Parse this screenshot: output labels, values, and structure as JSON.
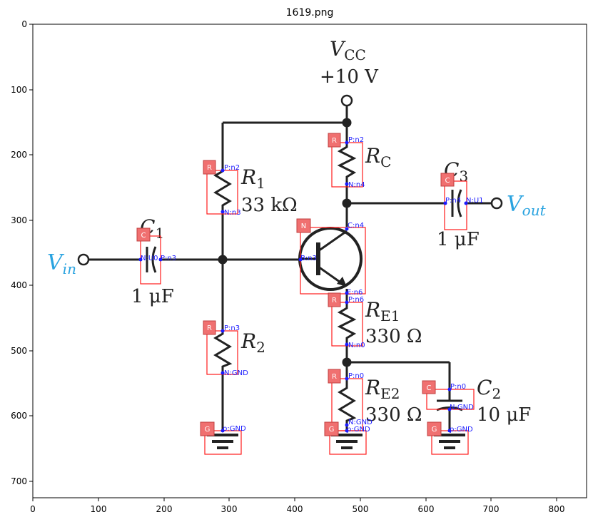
{
  "title": "1619.png",
  "axes": {
    "x_ticks": [
      "0",
      "100",
      "200",
      "300",
      "400",
      "500",
      "600",
      "700",
      "800"
    ],
    "y_ticks": [
      "0",
      "100",
      "200",
      "300",
      "400",
      "500",
      "600",
      "700"
    ]
  },
  "labels": {
    "vcc_name": "V",
    "vcc_sub": "CC",
    "vcc_value": "+10 V",
    "rc_name": "R",
    "rc_sub": "C",
    "r1_name": "R",
    "r1_sub": "1",
    "r1_value": "33 kΩ",
    "c3_name": "C",
    "c3_sub": "3",
    "c3_value": "1 μF",
    "vout_name": "V",
    "vout_sub": "out",
    "c1_name": "C",
    "c1_sub": "1",
    "c1_value": "1 μF",
    "vin_name": "V",
    "vin_sub": "in",
    "re1_name": "R",
    "re1_sub": "E1",
    "re1_value": "330 Ω",
    "r2_name": "R",
    "r2_sub": "2",
    "re2_name": "R",
    "re2_sub": "E2",
    "re2_value": "330 Ω",
    "c2_name": "C",
    "c2_sub": "2",
    "c2_value": "10 μF"
  },
  "component_tags": {
    "rc": "R",
    "r1": "R",
    "c3": "C",
    "c1": "C",
    "q": "N",
    "re1": "R",
    "r2": "R",
    "re2": "R",
    "c2": "C",
    "gnd1": "G",
    "gnd2": "G",
    "gnd3": "G"
  },
  "pins": {
    "rc_p": "P:n2",
    "rc_n": "N:n4",
    "r1_p": "P:n2",
    "r1_n": "N:n3",
    "c3_p": "P:n4",
    "c3_n": "N:U1",
    "c1_n": "N:U0",
    "c1_p": "P:n3",
    "q_c": "C:n4",
    "q_b": "B:n3",
    "q_e": "E:n6",
    "re1_p": "P:n6",
    "re1_n": "N:n0",
    "r2_p": "P:n3",
    "r2_n": "N:GND",
    "re2_p": "P:n0",
    "re2_n": "N:GND",
    "c2_p": "P:n0",
    "c2_n": "N:GND",
    "gnd1": "p:GND",
    "gnd2": "p:GND",
    "gnd3": "p:GND"
  },
  "colors": {
    "box": "#ff1a1a",
    "tag_fill": "#f07070",
    "pin_text": "#1a1aff",
    "io_text": "#29a3e0",
    "wire": "#222222"
  }
}
